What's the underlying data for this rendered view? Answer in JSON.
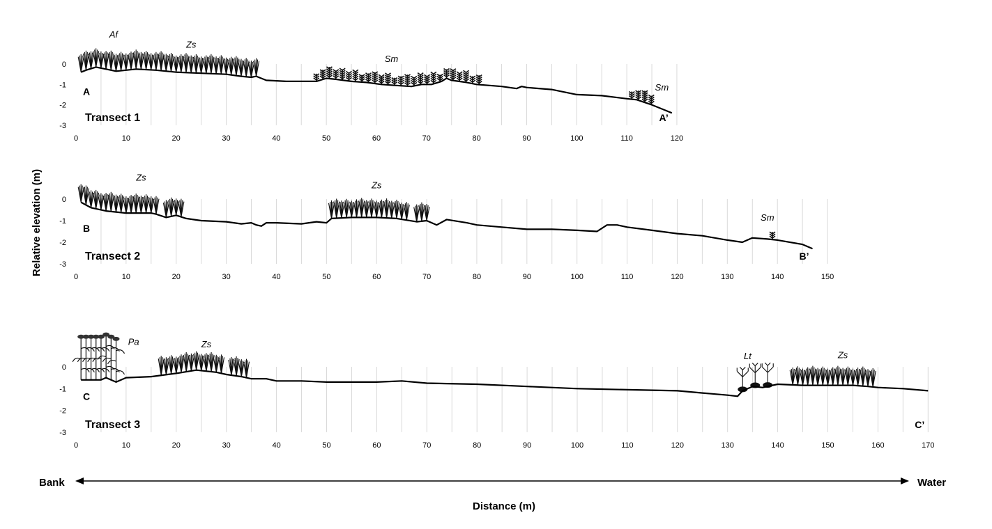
{
  "ylabel": "Relative elevation (m)",
  "xlabel": "Distance (m)",
  "direction": {
    "left": "Bank",
    "right": "Water"
  },
  "chart_data": [
    {
      "type": "line",
      "title": "Transect 1",
      "start_label": "A",
      "end_label": "A’",
      "xlim": [
        0,
        120
      ],
      "ylim": [
        -3,
        0
      ],
      "x_ticks": [
        0,
        10,
        20,
        30,
        40,
        50,
        60,
        70,
        80,
        90,
        100,
        110,
        120
      ],
      "y_ticks": [
        0,
        -1,
        -2,
        -3
      ],
      "grid_step": 5,
      "profile": [
        [
          1,
          -0.4
        ],
        [
          2,
          -0.3
        ],
        [
          4,
          -0.15
        ],
        [
          6,
          -0.25
        ],
        [
          8,
          -0.35
        ],
        [
          10,
          -0.3
        ],
        [
          12,
          -0.25
        ],
        [
          16,
          -0.3
        ],
        [
          20,
          -0.4
        ],
        [
          25,
          -0.45
        ],
        [
          30,
          -0.5
        ],
        [
          33,
          -0.6
        ],
        [
          35,
          -0.65
        ],
        [
          36,
          -0.6
        ],
        [
          38,
          -0.8
        ],
        [
          42,
          -0.85
        ],
        [
          45,
          -0.85
        ],
        [
          48,
          -0.85
        ],
        [
          50,
          -0.7
        ],
        [
          52,
          -0.75
        ],
        [
          55,
          -0.85
        ],
        [
          58,
          -0.9
        ],
        [
          61,
          -1.0
        ],
        [
          64,
          -1.05
        ],
        [
          67,
          -1.1
        ],
        [
          69,
          -1.0
        ],
        [
          71,
          -1.0
        ],
        [
          73,
          -0.85
        ],
        [
          74,
          -0.7
        ],
        [
          75,
          -0.8
        ],
        [
          78,
          -0.9
        ],
        [
          80,
          -1.0
        ],
        [
          85,
          -1.1
        ],
        [
          88,
          -1.2
        ],
        [
          89,
          -1.1
        ],
        [
          90,
          -1.15
        ],
        [
          95,
          -1.25
        ],
        [
          100,
          -1.5
        ],
        [
          105,
          -1.55
        ],
        [
          110,
          -1.7
        ],
        [
          112,
          -1.75
        ],
        [
          115,
          -2.0
        ],
        [
          118,
          -2.3
        ],
        [
          119,
          -2.4
        ]
      ],
      "vegetation": [
        {
          "species": "Zs",
          "x_start": 1,
          "x_end": 36
        },
        {
          "species": "Sm",
          "x_start": 48,
          "x_end": 81
        },
        {
          "species": "Sm",
          "x_start": 111,
          "x_end": 116
        }
      ],
      "species_labels": [
        {
          "text": "Af",
          "x": 7.5,
          "y": 1.3
        },
        {
          "text": "Zs",
          "x": 23,
          "y": 0.8
        },
        {
          "text": "Sm",
          "x": 63,
          "y": 0.1
        },
        {
          "text": "Sm",
          "x": 117,
          "y": -1.3
        }
      ]
    },
    {
      "type": "line",
      "title": "Transect 2",
      "start_label": "B",
      "end_label": "B’",
      "xlim": [
        0,
        150
      ],
      "ylim": [
        -3,
        0
      ],
      "x_ticks": [
        0,
        10,
        20,
        30,
        40,
        50,
        60,
        70,
        80,
        90,
        100,
        110,
        120,
        130,
        140,
        150
      ],
      "y_ticks": [
        0,
        -1,
        -2,
        -3
      ],
      "grid_step": 5,
      "profile": [
        [
          1,
          -0.15
        ],
        [
          3,
          -0.4
        ],
        [
          6,
          -0.55
        ],
        [
          10,
          -0.65
        ],
        [
          15,
          -0.65
        ],
        [
          16,
          -0.7
        ],
        [
          18,
          -0.85
        ],
        [
          20,
          -0.75
        ],
        [
          22,
          -0.9
        ],
        [
          25,
          -1.0
        ],
        [
          30,
          -1.05
        ],
        [
          33,
          -1.15
        ],
        [
          35,
          -1.1
        ],
        [
          36,
          -1.2
        ],
        [
          37,
          -1.25
        ],
        [
          38,
          -1.1
        ],
        [
          40,
          -1.1
        ],
        [
          45,
          -1.15
        ],
        [
          48,
          -1.05
        ],
        [
          50,
          -1.1
        ],
        [
          51,
          -0.9
        ],
        [
          55,
          -0.85
        ],
        [
          60,
          -0.85
        ],
        [
          64,
          -0.9
        ],
        [
          68,
          -1.05
        ],
        [
          70,
          -1.0
        ],
        [
          72,
          -1.2
        ],
        [
          74,
          -0.95
        ],
        [
          78,
          -1.1
        ],
        [
          80,
          -1.2
        ],
        [
          85,
          -1.3
        ],
        [
          90,
          -1.4
        ],
        [
          95,
          -1.4
        ],
        [
          100,
          -1.45
        ],
        [
          104,
          -1.5
        ],
        [
          106,
          -1.2
        ],
        [
          108,
          -1.2
        ],
        [
          110,
          -1.3
        ],
        [
          115,
          -1.45
        ],
        [
          120,
          -1.6
        ],
        [
          125,
          -1.7
        ],
        [
          130,
          -1.9
        ],
        [
          133,
          -2.0
        ],
        [
          135,
          -1.8
        ],
        [
          138,
          -1.85
        ],
        [
          140,
          -1.9
        ],
        [
          145,
          -2.1
        ],
        [
          147,
          -2.3
        ]
      ],
      "vegetation": [
        {
          "species": "Zs",
          "x_start": 1,
          "x_end": 16
        },
        {
          "species": "Zs",
          "x_start": 18,
          "x_end": 21
        },
        {
          "species": "Zs",
          "x_start": 51,
          "x_end": 66
        },
        {
          "species": "Zs",
          "x_start": 68,
          "x_end": 70
        },
        {
          "species": "Sm",
          "x_start": 139,
          "x_end": 140
        }
      ],
      "species_labels": [
        {
          "text": "Zs",
          "x": 13,
          "y": 0.85
        },
        {
          "text": "Zs",
          "x": 60,
          "y": 0.5
        },
        {
          "text": "Sm",
          "x": 138,
          "y": -1.0
        }
      ]
    },
    {
      "type": "line",
      "title": "Transect 3",
      "start_label": "C",
      "end_label": "C’",
      "xlim": [
        0,
        170
      ],
      "ylim": [
        -3,
        0
      ],
      "x_ticks": [
        0,
        10,
        20,
        30,
        40,
        50,
        60,
        70,
        80,
        90,
        100,
        110,
        120,
        130,
        140,
        150,
        160,
        170
      ],
      "y_ticks": [
        0,
        -1,
        -2,
        -3
      ],
      "grid_step": 5,
      "profile": [
        [
          1,
          -0.6
        ],
        [
          5,
          -0.6
        ],
        [
          6,
          -0.5
        ],
        [
          8,
          -0.7
        ],
        [
          10,
          -0.5
        ],
        [
          15,
          -0.45
        ],
        [
          20,
          -0.3
        ],
        [
          24,
          -0.15
        ],
        [
          28,
          -0.25
        ],
        [
          30,
          -0.35
        ],
        [
          33,
          -0.45
        ],
        [
          35,
          -0.55
        ],
        [
          38,
          -0.55
        ],
        [
          40,
          -0.65
        ],
        [
          45,
          -0.65
        ],
        [
          50,
          -0.7
        ],
        [
          60,
          -0.7
        ],
        [
          65,
          -0.65
        ],
        [
          70,
          -0.75
        ],
        [
          80,
          -0.8
        ],
        [
          90,
          -0.9
        ],
        [
          100,
          -1.0
        ],
        [
          110,
          -1.05
        ],
        [
          120,
          -1.1
        ],
        [
          125,
          -1.2
        ],
        [
          130,
          -1.3
        ],
        [
          132,
          -1.35
        ],
        [
          133,
          -1.1
        ],
        [
          135,
          -0.9
        ],
        [
          137,
          -0.95
        ],
        [
          140,
          -0.8
        ],
        [
          145,
          -0.85
        ],
        [
          150,
          -0.85
        ],
        [
          155,
          -0.85
        ],
        [
          158,
          -0.9
        ],
        [
          160,
          -0.95
        ],
        [
          165,
          -1.0
        ],
        [
          170,
          -1.1
        ]
      ],
      "vegetation": [
        {
          "species": "Pa",
          "x_start": 1,
          "x_end": 8
        },
        {
          "species": "Zs",
          "x_start": 17,
          "x_end": 29
        },
        {
          "species": "Zs",
          "x_start": 31,
          "x_end": 34
        },
        {
          "species": "Lt",
          "x_start": 132,
          "x_end": 138
        },
        {
          "species": "Zs",
          "x_start": 143,
          "x_end": 159
        }
      ],
      "species_labels": [
        {
          "text": "Pa",
          "x": 11.5,
          "y": 1.0
        },
        {
          "text": "Zs",
          "x": 26,
          "y": 0.9
        },
        {
          "text": "Lt",
          "x": 134,
          "y": 0.35
        },
        {
          "text": "Zs",
          "x": 153,
          "y": 0.4
        }
      ]
    }
  ]
}
